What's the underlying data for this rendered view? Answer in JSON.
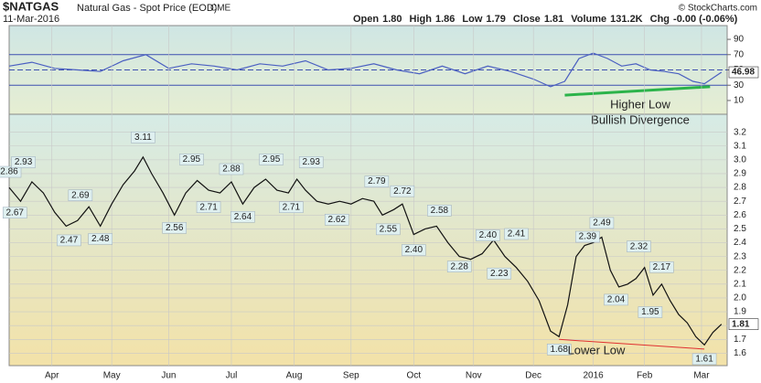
{
  "header": {
    "symbol": "$NATGAS",
    "name": "Natural Gas - Spot Price (EOD)",
    "exchange": "CME",
    "date": "11-Mar-2016",
    "copyright": "© StockCharts.com",
    "quote": [
      [
        "Open",
        "1.80"
      ],
      [
        "High",
        "1.86"
      ],
      [
        "Low",
        "1.79"
      ],
      [
        "Close",
        "1.81"
      ],
      [
        "Volume",
        "131.2K"
      ],
      [
        "Chg",
        "-0.00 (-0.06%)"
      ]
    ]
  },
  "chart_data": [
    {
      "type": "line",
      "color": "#4a5fc1",
      "x": [
        0,
        8,
        16,
        24,
        32,
        40,
        48,
        56,
        64,
        72,
        80,
        88,
        96,
        104,
        112,
        120,
        128,
        136,
        144,
        152,
        160,
        168,
        176,
        184,
        190,
        195,
        200,
        205,
        210,
        215,
        220,
        225,
        230,
        235,
        240,
        244,
        248,
        250
      ],
      "series": [
        {
          "color": "#4a5fc1",
          "values": [
            55,
            60,
            52,
            50,
            48,
            62,
            70,
            52,
            58,
            55,
            50,
            58,
            55,
            62,
            50,
            52,
            58,
            50,
            45,
            55,
            45,
            55,
            48,
            38,
            28,
            35,
            65,
            72,
            65,
            55,
            58,
            50,
            48,
            45,
            35,
            32,
            42,
            46.98
          ]
        }
      ],
      "xlim": [
        0,
        252
      ],
      "ylim": [
        -8,
        108
      ],
      "yticks": [
        10,
        30,
        50,
        70,
        90
      ],
      "hlines": [
        30,
        70
      ],
      "dashed_hline": 50,
      "trendlines": [
        {
          "color": "#2bb34a",
          "x": [
            195,
            246
          ],
          "values": [
            17,
            28
          ]
        }
      ],
      "annotations": [
        "Higher Low",
        "Bullish Divergence"
      ]
    },
    {
      "type": "line",
      "color": "#111111",
      "x": [
        0,
        4,
        8,
        12,
        16,
        20,
        24,
        28,
        32,
        36,
        40,
        44,
        47,
        50,
        54,
        58,
        62,
        66,
        70,
        74,
        78,
        82,
        86,
        90,
        94,
        98,
        101,
        104,
        108,
        112,
        116,
        120,
        124,
        128,
        131,
        135,
        138,
        142,
        146,
        150,
        154,
        158,
        162,
        166,
        170,
        174,
        178,
        182,
        186,
        190,
        193,
        196,
        199,
        202,
        205,
        208,
        211,
        214,
        217,
        220,
        223,
        226,
        229,
        232,
        235,
        238,
        241,
        244,
        247,
        250
      ],
      "series": [
        {
          "color": "#111111",
          "values": [
            2.8,
            2.7,
            2.84,
            2.76,
            2.62,
            2.52,
            2.56,
            2.66,
            2.52,
            2.68,
            2.82,
            2.92,
            3.02,
            2.9,
            2.76,
            2.6,
            2.76,
            2.85,
            2.78,
            2.76,
            2.84,
            2.68,
            2.8,
            2.86,
            2.78,
            2.76,
            2.86,
            2.78,
            2.7,
            2.68,
            2.7,
            2.68,
            2.72,
            2.7,
            2.6,
            2.64,
            2.68,
            2.46,
            2.5,
            2.52,
            2.4,
            2.3,
            2.28,
            2.32,
            2.42,
            2.3,
            2.22,
            2.12,
            1.98,
            1.76,
            1.72,
            1.95,
            2.3,
            2.38,
            2.4,
            2.44,
            2.2,
            2.08,
            2.1,
            2.14,
            2.22,
            2.02,
            2.1,
            1.98,
            1.88,
            1.82,
            1.72,
            1.66,
            1.75,
            1.81
          ]
        }
      ],
      "points": {
        "x": [
          0,
          2,
          5,
          21,
          25,
          32,
          47,
          58,
          64,
          70,
          78,
          82,
          92,
          99,
          106,
          115,
          129,
          133,
          138,
          142,
          151,
          158,
          168,
          172,
          178,
          193,
          203,
          208,
          213,
          221,
          225,
          229,
          244
        ],
        "values": [
          2.86,
          2.67,
          2.93,
          2.47,
          2.69,
          2.48,
          3.11,
          2.56,
          2.95,
          2.71,
          2.88,
          2.64,
          2.95,
          2.71,
          2.93,
          2.62,
          2.79,
          2.55,
          2.72,
          2.4,
          2.58,
          2.28,
          2.4,
          2.23,
          2.41,
          1.68,
          2.39,
          2.49,
          2.04,
          2.32,
          1.95,
          2.17,
          1.61
        ],
        "value_labels": [
          "2.86",
          "2.67",
          "2.93",
          "2.47",
          "2.69",
          "2.48",
          "3.11",
          "2.56",
          "2.95",
          "2.71",
          "2.88",
          "2.64",
          "2.95",
          "2.71",
          "2.93",
          "2.62",
          "2.79",
          "2.55",
          "2.72",
          "2.40",
          "2.58",
          "2.28",
          "2.40",
          "2.23",
          "2.41",
          "1.68",
          "2.39",
          "2.49",
          "2.04",
          "2.32",
          "1.95",
          "2.17",
          "1.61"
        ]
      },
      "xlim": [
        0,
        252
      ],
      "ylim": [
        1.51,
        3.33
      ],
      "yticks": [
        1.6,
        1.7,
        1.8,
        1.9,
        {
          "value": 2,
          "label": "2.0"
        },
        2.1,
        2.2,
        2.3,
        2.4,
        2.5,
        2.6,
        2.7,
        2.8,
        2.9,
        {
          "value": 3,
          "label": "3.0"
        },
        3.1,
        3.2
      ],
      "xticks": [
        {
          "value": 15,
          "label": "Apr"
        },
        {
          "value": 36,
          "label": "May"
        },
        {
          "value": 56,
          "label": "Jun"
        },
        {
          "value": 78,
          "label": "Jul"
        },
        {
          "value": 100,
          "label": "Aug"
        },
        {
          "value": 120,
          "label": "Sep"
        },
        {
          "value": 142,
          "label": "Oct"
        },
        {
          "value": 163,
          "label": "Nov"
        },
        {
          "value": 184,
          "label": "Dec"
        },
        {
          "value": 205,
          "label": "2016"
        },
        {
          "value": 223,
          "label": "Feb"
        },
        {
          "value": 243,
          "label": "Mar"
        }
      ],
      "grid": true,
      "trendlines": [
        {
          "color": "#e03030",
          "x": [
            193,
            244
          ],
          "values": [
            1.7,
            1.63
          ]
        }
      ],
      "annotations": [
        "Lower Low"
      ]
    }
  ]
}
